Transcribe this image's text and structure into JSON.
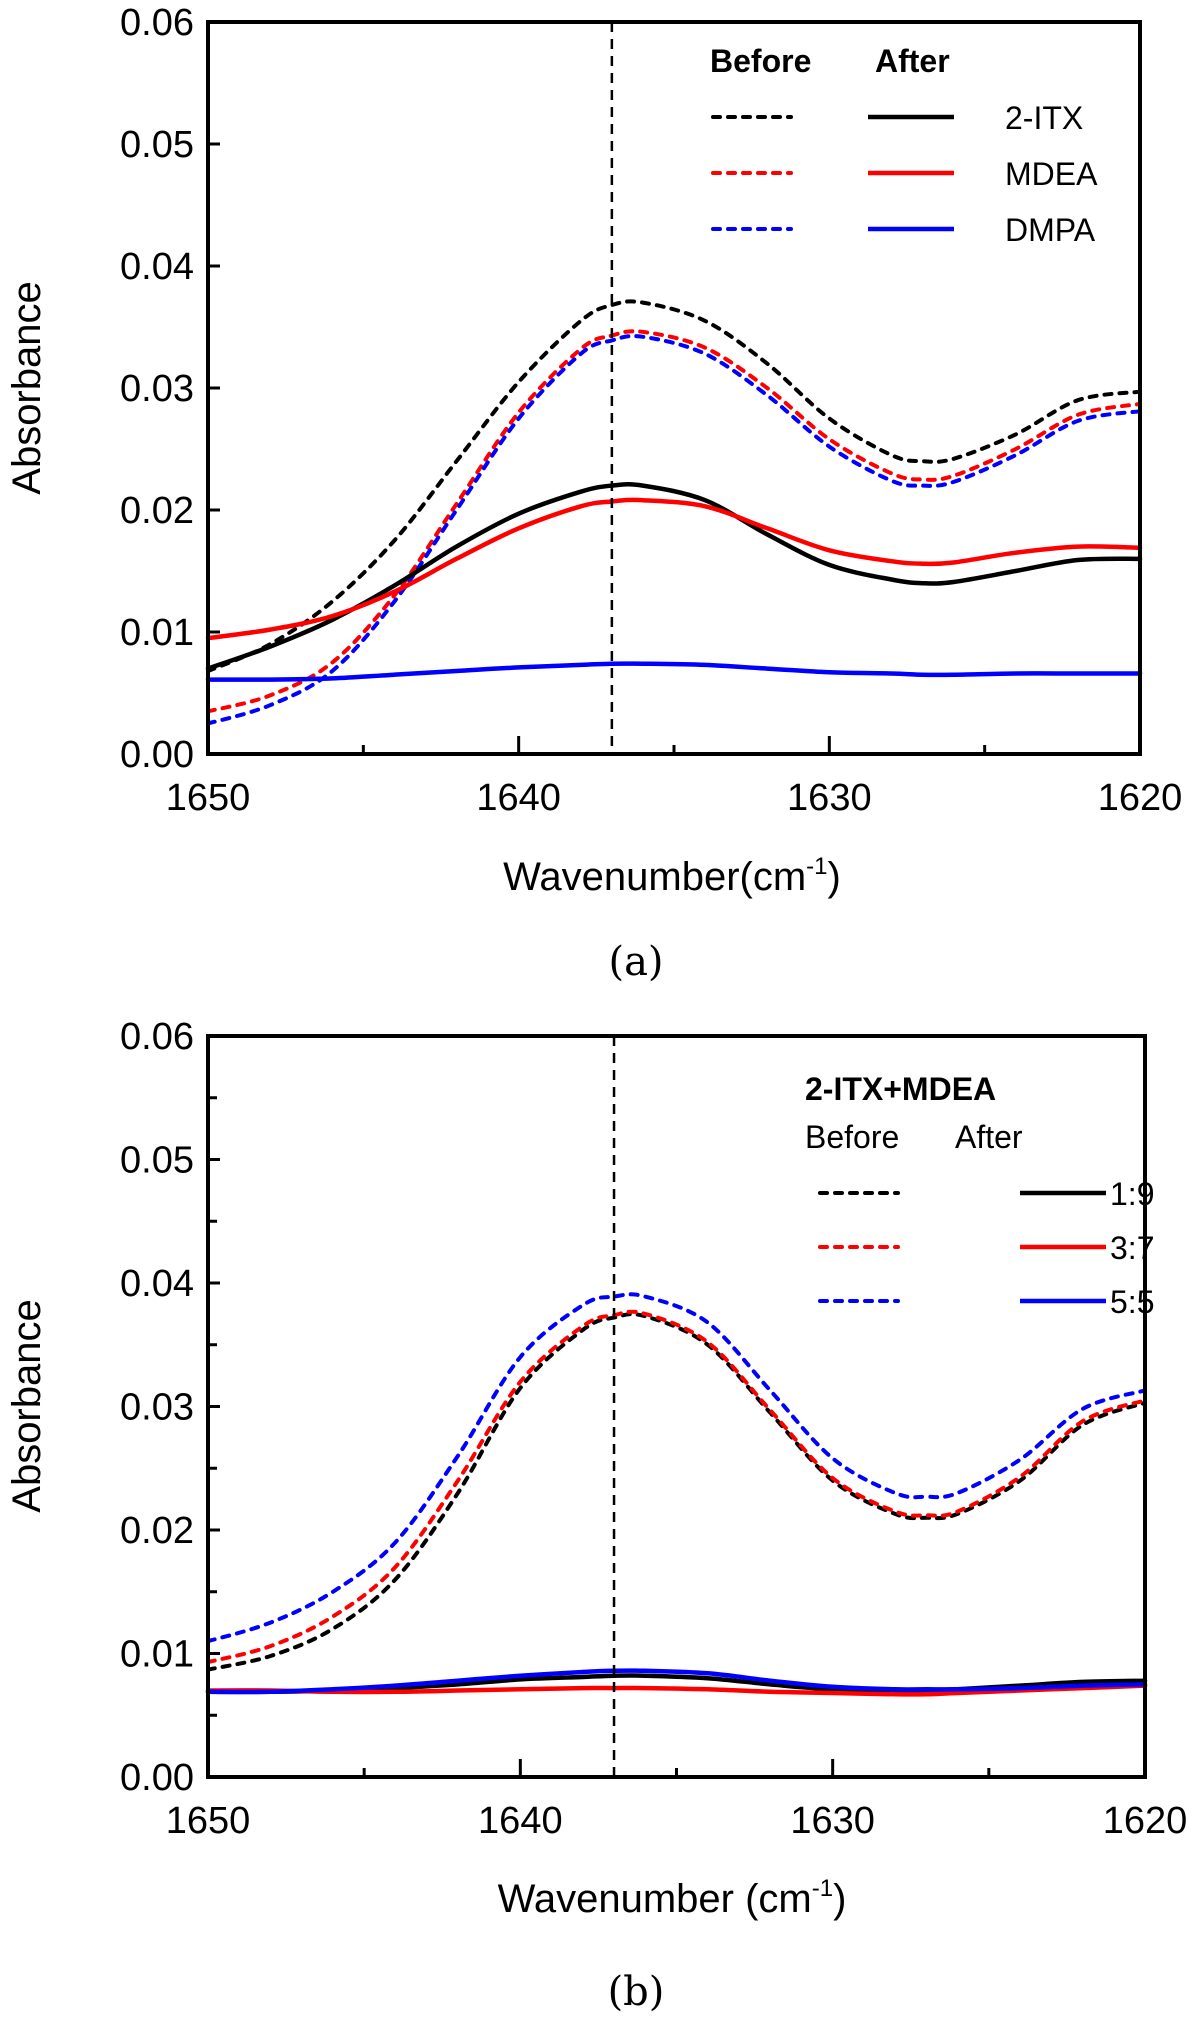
{
  "chart_data": [
    {
      "id": "a",
      "type": "line",
      "caption": "(a)",
      "title": "",
      "xlabel": "Wavenumber(cm",
      "xlabel_sup": "-1",
      "xlabel_close": ")",
      "ylabel": "Absorbance",
      "xlim": [
        1650,
        1620
      ],
      "ylim": [
        0.0,
        0.06
      ],
      "x_reversed": true,
      "xticks": [
        1650,
        1640,
        1630,
        1620
      ],
      "xtick_labels": [
        "1650",
        "1640",
        "1630",
        "1620"
      ],
      "x_minor_ticks": [
        1645,
        1635,
        1625
      ],
      "yticks": [
        0.0,
        0.01,
        0.02,
        0.03,
        0.04,
        0.05,
        0.06
      ],
      "ytick_labels": [
        "0.00",
        "0.01",
        "0.02",
        "0.03",
        "0.04",
        "0.05",
        "0.06"
      ],
      "y_minor_ticks": [],
      "reference_line": {
        "x": 1637,
        "style": "dashed",
        "color": "#000000"
      },
      "grid": false,
      "legend": {
        "placement": "top-right",
        "title": "",
        "header_before": "Before",
        "header_after": "After",
        "headers_bold": true,
        "entries": [
          {
            "label": "2-ITX",
            "color": "#000000"
          },
          {
            "label": "MDEA",
            "color": "#ff0000"
          },
          {
            "label": "DMPA",
            "color": "#0000ff"
          }
        ]
      },
      "series": [
        {
          "name": "2-ITX Before",
          "color": "#000000",
          "style": "dashed",
          "x": [
            1650,
            1648,
            1646,
            1644,
            1642,
            1640,
            1638,
            1637,
            1636,
            1634,
            1632,
            1630,
            1628,
            1627,
            1626,
            1624,
            1622,
            1620
          ],
          "y": [
            0.0068,
            0.009,
            0.0125,
            0.0175,
            0.024,
            0.0305,
            0.0355,
            0.0368,
            0.037,
            0.0355,
            0.032,
            0.0275,
            0.0245,
            0.024,
            0.0242,
            0.0262,
            0.029,
            0.0297
          ]
        },
        {
          "name": "MDEA Before",
          "color": "#ff0000",
          "style": "dashed",
          "x": [
            1650,
            1648,
            1646,
            1644,
            1642,
            1640,
            1638,
            1637,
            1636,
            1634,
            1632,
            1630,
            1628,
            1627,
            1626,
            1624,
            1622,
            1620
          ],
          "y": [
            0.0035,
            0.0048,
            0.0075,
            0.013,
            0.0205,
            0.028,
            0.0332,
            0.0343,
            0.0346,
            0.0333,
            0.03,
            0.0258,
            0.023,
            0.0225,
            0.0228,
            0.025,
            0.0278,
            0.0287
          ]
        },
        {
          "name": "DMPA Before",
          "color": "#0000ff",
          "style": "dashed",
          "x": [
            1650,
            1648,
            1646,
            1644,
            1642,
            1640,
            1638,
            1637,
            1636,
            1634,
            1632,
            1630,
            1628,
            1627,
            1626,
            1624,
            1622,
            1620
          ],
          "y": [
            0.0025,
            0.004,
            0.0068,
            0.0125,
            0.02,
            0.0275,
            0.0328,
            0.0339,
            0.0342,
            0.0328,
            0.0294,
            0.0252,
            0.0224,
            0.022,
            0.0223,
            0.0245,
            0.0273,
            0.0281
          ]
        },
        {
          "name": "2-ITX After",
          "color": "#000000",
          "style": "solid",
          "x": [
            1650,
            1648,
            1646,
            1644,
            1642,
            1640,
            1638,
            1637,
            1636,
            1634,
            1632,
            1630,
            1628,
            1627,
            1626,
            1624,
            1622,
            1620
          ],
          "y": [
            0.007,
            0.0088,
            0.011,
            0.0138,
            0.017,
            0.0197,
            0.0215,
            0.022,
            0.022,
            0.0208,
            0.018,
            0.0155,
            0.0143,
            0.014,
            0.0141,
            0.015,
            0.0159,
            0.016
          ]
        },
        {
          "name": "MDEA After",
          "color": "#ff0000",
          "style": "solid",
          "x": [
            1650,
            1648,
            1646,
            1644,
            1642,
            1640,
            1638,
            1637,
            1636,
            1634,
            1632,
            1630,
            1628,
            1627,
            1626,
            1624,
            1622,
            1620
          ],
          "y": [
            0.0095,
            0.0102,
            0.0113,
            0.0133,
            0.016,
            0.0185,
            0.0203,
            0.0207,
            0.0208,
            0.0203,
            0.0185,
            0.0167,
            0.0158,
            0.0156,
            0.0157,
            0.0165,
            0.017,
            0.0169
          ]
        },
        {
          "name": "DMPA After",
          "color": "#0000ff",
          "style": "solid",
          "x": [
            1650,
            1648,
            1646,
            1644,
            1642,
            1640,
            1638,
            1637,
            1636,
            1634,
            1632,
            1630,
            1628,
            1627,
            1626,
            1624,
            1622,
            1620
          ],
          "y": [
            0.0061,
            0.0061,
            0.0062,
            0.0065,
            0.0068,
            0.0071,
            0.0073,
            0.0074,
            0.0074,
            0.0073,
            0.007,
            0.0067,
            0.0066,
            0.0065,
            0.0065,
            0.0066,
            0.0066,
            0.0066
          ]
        }
      ]
    },
    {
      "id": "b",
      "type": "line",
      "caption": "(b)",
      "title": "",
      "xlabel": "Wavenumber (cm",
      "xlabel_sup": "-1",
      "xlabel_close": ")",
      "ylabel": "Absorbance",
      "xlim": [
        1650,
        1620
      ],
      "ylim": [
        0.0,
        0.06
      ],
      "x_reversed": true,
      "xticks": [
        1650,
        1640,
        1630,
        1620
      ],
      "xtick_labels": [
        "1650",
        "1640",
        "1630",
        "1620"
      ],
      "x_minor_ticks": [
        1645,
        1635,
        1625
      ],
      "yticks": [
        0.0,
        0.01,
        0.02,
        0.03,
        0.04,
        0.05,
        0.06
      ],
      "ytick_labels": [
        "0.00",
        "0.01",
        "0.02",
        "0.03",
        "0.04",
        "0.05",
        "0.06"
      ],
      "y_minor_ticks": [
        0.005,
        0.015,
        0.025,
        0.035,
        0.045,
        0.055
      ],
      "reference_line": {
        "x": 1637,
        "style": "dashed",
        "color": "#000000"
      },
      "grid": false,
      "legend": {
        "placement": "top-right",
        "title": "2-ITX+MDEA",
        "header_before": "Before",
        "header_after": "After",
        "headers_bold": false,
        "entries": [
          {
            "label": "1:9",
            "color": "#000000"
          },
          {
            "label": "3:7",
            "color": "#ff0000"
          },
          {
            "label": "5:5",
            "color": "#0000ff"
          }
        ]
      },
      "series": [
        {
          "name": "1:9 Before",
          "color": "#000000",
          "style": "dashed",
          "x": [
            1650,
            1648,
            1646,
            1644,
            1642,
            1640,
            1638,
            1637,
            1636,
            1634,
            1632,
            1630,
            1628,
            1627,
            1626,
            1624,
            1622,
            1620
          ],
          "y": [
            0.0087,
            0.0098,
            0.012,
            0.016,
            0.023,
            0.0315,
            0.0362,
            0.0372,
            0.0373,
            0.035,
            0.0295,
            0.024,
            0.0213,
            0.021,
            0.0213,
            0.024,
            0.0285,
            0.0303
          ]
        },
        {
          "name": "3:7 Before",
          "color": "#ff0000",
          "style": "dashed",
          "x": [
            1650,
            1648,
            1646,
            1644,
            1642,
            1640,
            1638,
            1637,
            1636,
            1634,
            1632,
            1630,
            1628,
            1627,
            1626,
            1624,
            1622,
            1620
          ],
          "y": [
            0.0093,
            0.0106,
            0.013,
            0.017,
            0.024,
            0.032,
            0.0365,
            0.0374,
            0.0375,
            0.0352,
            0.0297,
            0.0242,
            0.0215,
            0.0212,
            0.0215,
            0.0243,
            0.0288,
            0.0305
          ]
        },
        {
          "name": "5:5 Before",
          "color": "#0000ff",
          "style": "dashed",
          "x": [
            1650,
            1648,
            1646,
            1644,
            1642,
            1640,
            1638,
            1637,
            1636,
            1634,
            1632,
            1630,
            1628,
            1627,
            1626,
            1624,
            1622,
            1620
          ],
          "y": [
            0.011,
            0.0125,
            0.015,
            0.019,
            0.026,
            0.034,
            0.0382,
            0.0389,
            0.0389,
            0.0368,
            0.0313,
            0.0258,
            0.023,
            0.0227,
            0.023,
            0.0257,
            0.0298,
            0.0313
          ]
        },
        {
          "name": "1:9 After",
          "color": "#000000",
          "style": "solid",
          "x": [
            1650,
            1648,
            1646,
            1644,
            1642,
            1640,
            1638,
            1637,
            1636,
            1634,
            1632,
            1630,
            1628,
            1627,
            1626,
            1624,
            1622,
            1620
          ],
          "y": [
            0.0069,
            0.0069,
            0.007,
            0.0072,
            0.0075,
            0.0079,
            0.0081,
            0.0082,
            0.0082,
            0.008,
            0.0075,
            0.0071,
            0.007,
            0.007,
            0.0071,
            0.0074,
            0.0077,
            0.0078
          ]
        },
        {
          "name": "3:7 After",
          "color": "#ff0000",
          "style": "solid",
          "x": [
            1650,
            1648,
            1646,
            1644,
            1642,
            1640,
            1638,
            1637,
            1636,
            1634,
            1632,
            1630,
            1628,
            1627,
            1626,
            1624,
            1622,
            1620
          ],
          "y": [
            0.007,
            0.007,
            0.0069,
            0.0069,
            0.007,
            0.0071,
            0.0072,
            0.0072,
            0.0072,
            0.0071,
            0.0069,
            0.0068,
            0.0067,
            0.0067,
            0.0068,
            0.007,
            0.0072,
            0.0074
          ]
        },
        {
          "name": "5:5 After",
          "color": "#0000ff",
          "style": "solid",
          "x": [
            1650,
            1648,
            1646,
            1644,
            1642,
            1640,
            1638,
            1637,
            1636,
            1634,
            1632,
            1630,
            1628,
            1627,
            1626,
            1624,
            1622,
            1620
          ],
          "y": [
            0.0069,
            0.0069,
            0.0071,
            0.0074,
            0.0078,
            0.0082,
            0.0085,
            0.0086,
            0.0086,
            0.0084,
            0.0078,
            0.0073,
            0.0071,
            0.0071,
            0.0071,
            0.0072,
            0.0074,
            0.0075
          ]
        }
      ]
    }
  ]
}
